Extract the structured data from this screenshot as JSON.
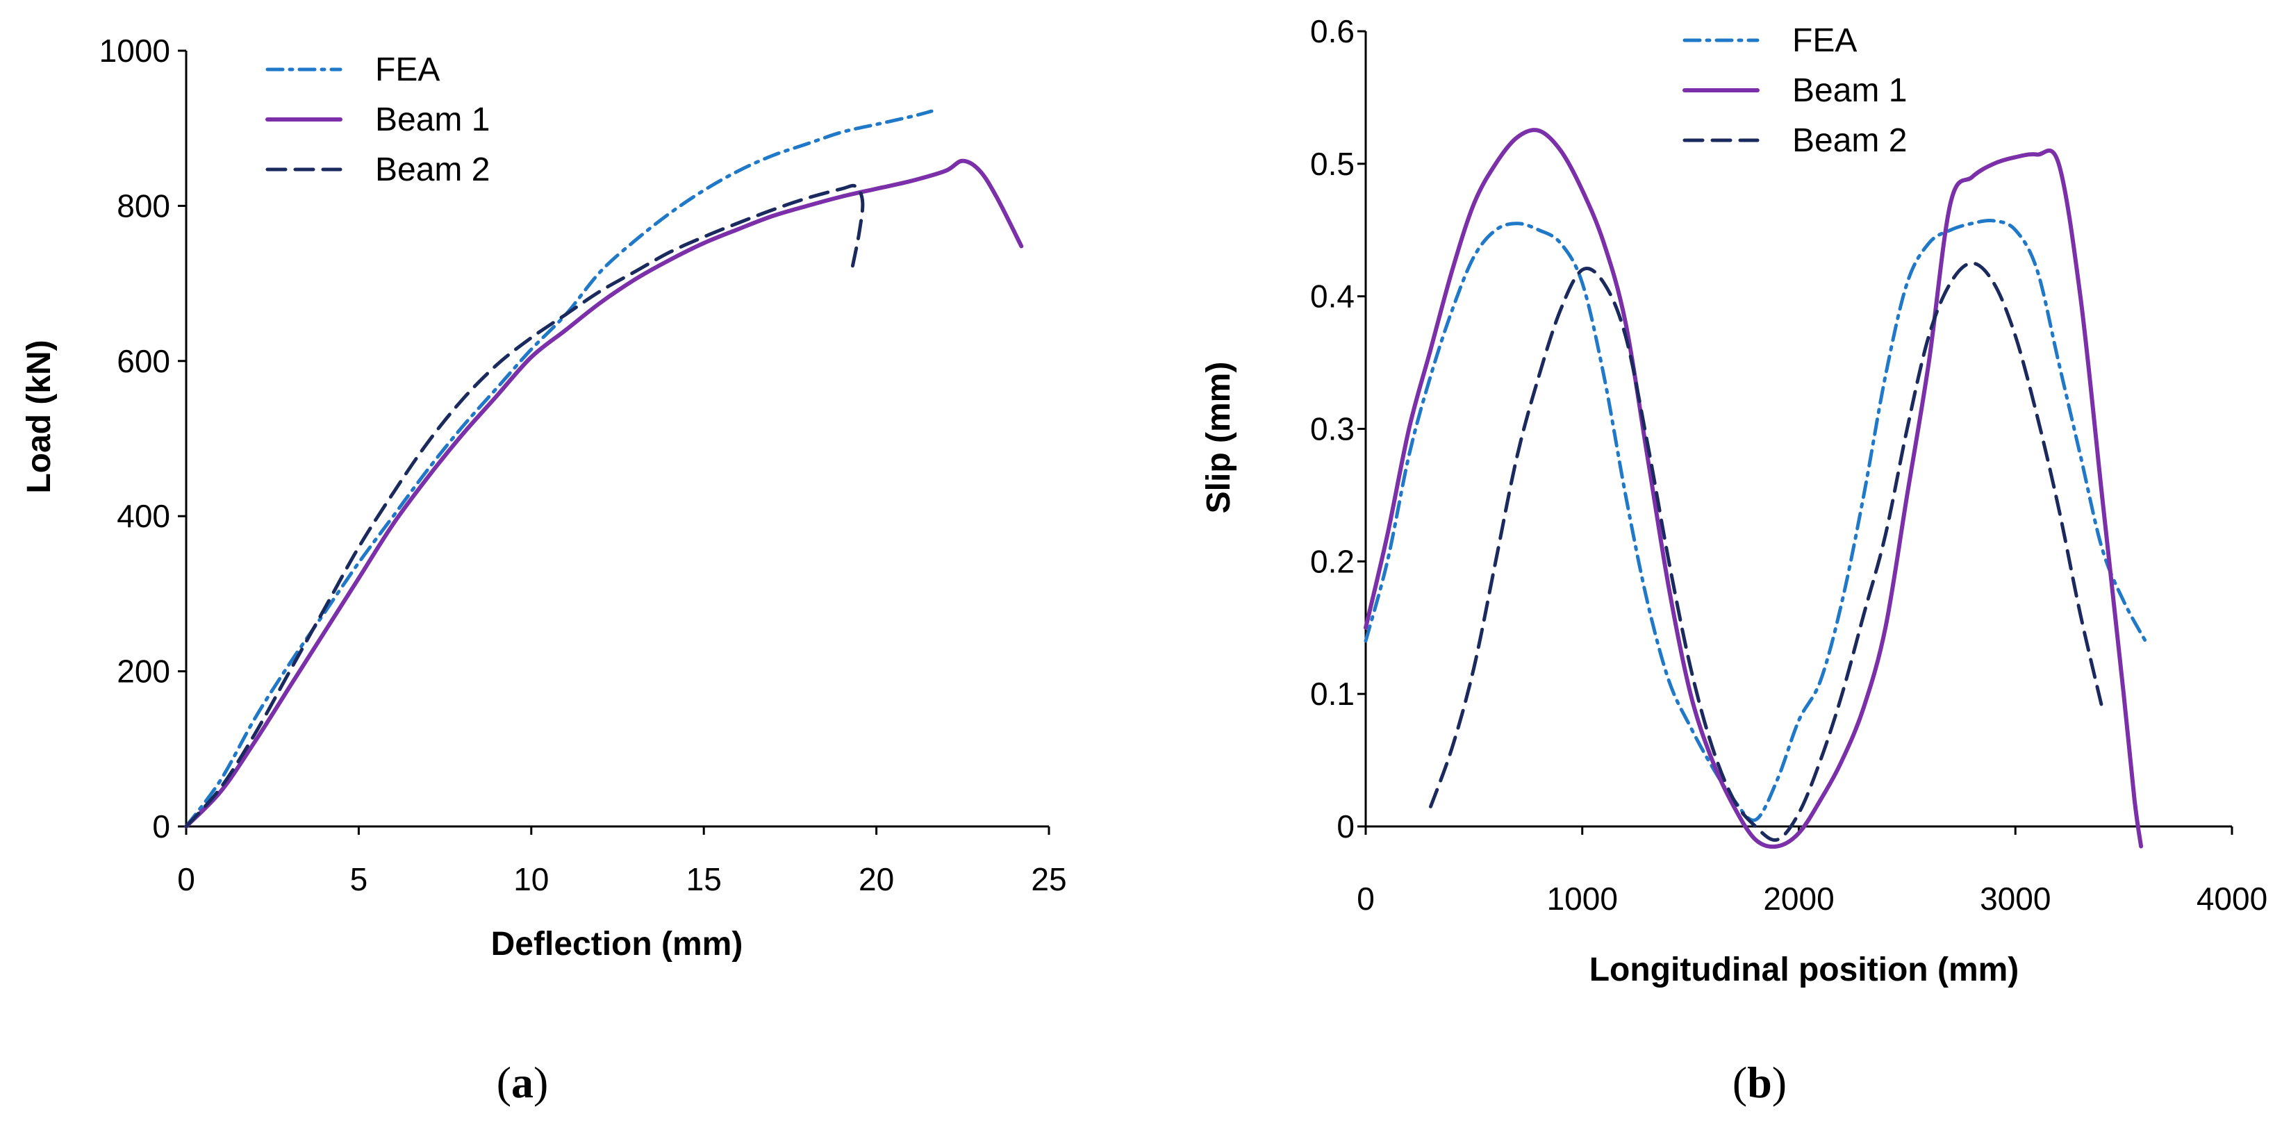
{
  "chart_data": [
    {
      "type": "line",
      "panel": "a",
      "caption": "(a)",
      "xlabel": "Deflection (mm)",
      "ylabel": "Load (kN)",
      "xlim": [
        0,
        25
      ],
      "ylim": [
        0,
        1000
      ],
      "xticks": [
        "0",
        "5",
        "10",
        "15",
        "20",
        "25"
      ],
      "yticks": [
        "0",
        "200",
        "400",
        "600",
        "800",
        "1000"
      ],
      "legend_position": "top-left",
      "series": [
        {
          "name": "FEA",
          "style": "dashdot",
          "color": "#1f78c8",
          "points": [
            [
              0,
              0
            ],
            [
              1,
              60
            ],
            [
              2,
              140
            ],
            [
              3,
              210
            ],
            [
              4,
              275
            ],
            [
              5,
              340
            ],
            [
              6,
              400
            ],
            [
              7,
              460
            ],
            [
              8,
              515
            ],
            [
              9,
              565
            ],
            [
              10,
              615
            ],
            [
              11,
              660
            ],
            [
              12,
              715
            ],
            [
              13,
              755
            ],
            [
              14,
              790
            ],
            [
              15,
              820
            ],
            [
              16,
              845
            ],
            [
              17,
              865
            ],
            [
              18,
              880
            ],
            [
              19,
              895
            ],
            [
              20,
              905
            ],
            [
              21,
              915
            ],
            [
              21.6,
              922
            ]
          ]
        },
        {
          "name": "Beam 1",
          "style": "solid",
          "color": "#7b2fa8",
          "points": [
            [
              0,
              0
            ],
            [
              1,
              45
            ],
            [
              2,
              110
            ],
            [
              3,
              180
            ],
            [
              4,
              250
            ],
            [
              5,
              320
            ],
            [
              6,
              390
            ],
            [
              7,
              450
            ],
            [
              8,
              505
            ],
            [
              9,
              555
            ],
            [
              10,
              605
            ],
            [
              11,
              640
            ],
            [
              12,
              675
            ],
            [
              13,
              705
            ],
            [
              14,
              730
            ],
            [
              15,
              752
            ],
            [
              16,
              770
            ],
            [
              17,
              787
            ],
            [
              18,
              800
            ],
            [
              19,
              812
            ],
            [
              20,
              822
            ],
            [
              21,
              832
            ],
            [
              22,
              845
            ],
            [
              22.5,
              858
            ],
            [
              23,
              845
            ],
            [
              23.5,
              810
            ],
            [
              24.2,
              748
            ]
          ]
        },
        {
          "name": "Beam 2",
          "style": "dashed",
          "color": "#1a2a5e",
          "points": [
            [
              0,
              0
            ],
            [
              1,
              50
            ],
            [
              2,
              120
            ],
            [
              3,
              200
            ],
            [
              4,
              280
            ],
            [
              5,
              360
            ],
            [
              6,
              430
            ],
            [
              7,
              495
            ],
            [
              8,
              550
            ],
            [
              9,
              595
            ],
            [
              10,
              630
            ],
            [
              11,
              660
            ],
            [
              12,
              690
            ],
            [
              13,
              715
            ],
            [
              14,
              740
            ],
            [
              15,
              760
            ],
            [
              16,
              778
            ],
            [
              17,
              795
            ],
            [
              18,
              810
            ],
            [
              19,
              822
            ],
            [
              19.4,
              825
            ],
            [
              19.6,
              805
            ],
            [
              19.5,
              765
            ],
            [
              19.3,
              720
            ]
          ]
        }
      ]
    },
    {
      "type": "line",
      "panel": "b",
      "caption": "(b)",
      "xlabel": "Longitudinal position (mm)",
      "ylabel": "Slip (mm)",
      "xlim": [
        0,
        4000
      ],
      "ylim": [
        0,
        0.6
      ],
      "xticks": [
        "0",
        "1000",
        "2000",
        "3000",
        "4000"
      ],
      "yticks": [
        "0",
        "0.1",
        "0.2",
        "0.3",
        "0.4",
        "0.5",
        "0.6"
      ],
      "legend_position": "top-center",
      "series": [
        {
          "name": "FEA",
          "style": "dashdot",
          "color": "#1f78c8",
          "points": [
            [
              0,
              0.14
            ],
            [
              100,
              0.2
            ],
            [
              200,
              0.28
            ],
            [
              300,
              0.34
            ],
            [
              400,
              0.39
            ],
            [
              500,
              0.43
            ],
            [
              600,
              0.45
            ],
            [
              700,
              0.455
            ],
            [
              800,
              0.45
            ],
            [
              900,
              0.44
            ],
            [
              1000,
              0.41
            ],
            [
              1100,
              0.34
            ],
            [
              1200,
              0.25
            ],
            [
              1300,
              0.17
            ],
            [
              1400,
              0.11
            ],
            [
              1500,
              0.075
            ],
            [
              1600,
              0.045
            ],
            [
              1700,
              0.02
            ],
            [
              1800,
              0.005
            ],
            [
              1900,
              0.035
            ],
            [
              2000,
              0.08
            ],
            [
              2100,
              0.11
            ],
            [
              2200,
              0.17
            ],
            [
              2300,
              0.25
            ],
            [
              2400,
              0.34
            ],
            [
              2500,
              0.41
            ],
            [
              2600,
              0.44
            ],
            [
              2700,
              0.45
            ],
            [
              2800,
              0.455
            ],
            [
              2900,
              0.457
            ],
            [
              3000,
              0.45
            ],
            [
              3100,
              0.42
            ],
            [
              3200,
              0.35
            ],
            [
              3300,
              0.28
            ],
            [
              3400,
              0.21
            ],
            [
              3500,
              0.17
            ],
            [
              3600,
              0.14
            ]
          ]
        },
        {
          "name": "Beam 1",
          "style": "solid",
          "color": "#7b2fa8",
          "points": [
            [
              0,
              0.15
            ],
            [
              100,
              0.22
            ],
            [
              200,
              0.3
            ],
            [
              300,
              0.36
            ],
            [
              400,
              0.42
            ],
            [
              500,
              0.47
            ],
            [
              600,
              0.5
            ],
            [
              700,
              0.52
            ],
            [
              800,
              0.525
            ],
            [
              900,
              0.51
            ],
            [
              1000,
              0.48
            ],
            [
              1100,
              0.44
            ],
            [
              1200,
              0.38
            ],
            [
              1300,
              0.28
            ],
            [
              1400,
              0.18
            ],
            [
              1500,
              0.1
            ],
            [
              1600,
              0.05
            ],
            [
              1700,
              0.015
            ],
            [
              1800,
              -0.01
            ],
            [
              1900,
              -0.015
            ],
            [
              2000,
              -0.005
            ],
            [
              2100,
              0.02
            ],
            [
              2200,
              0.05
            ],
            [
              2300,
              0.09
            ],
            [
              2400,
              0.15
            ],
            [
              2500,
              0.25
            ],
            [
              2600,
              0.35
            ],
            [
              2700,
              0.47
            ],
            [
              2800,
              0.49
            ],
            [
              2900,
              0.5
            ],
            [
              3000,
              0.505
            ],
            [
              3100,
              0.507
            ],
            [
              3200,
              0.5
            ],
            [
              3300,
              0.4
            ],
            [
              3400,
              0.25
            ],
            [
              3500,
              0.1
            ],
            [
              3550,
              0.02
            ],
            [
              3580,
              -0.015
            ]
          ]
        },
        {
          "name": "Beam 2",
          "style": "dashed",
          "color": "#1a2a5e",
          "points": [
            [
              300,
              0.015
            ],
            [
              400,
              0.06
            ],
            [
              500,
              0.12
            ],
            [
              600,
              0.2
            ],
            [
              700,
              0.28
            ],
            [
              800,
              0.34
            ],
            [
              900,
              0.39
            ],
            [
              1000,
              0.42
            ],
            [
              1100,
              0.41
            ],
            [
              1200,
              0.37
            ],
            [
              1300,
              0.29
            ],
            [
              1400,
              0.2
            ],
            [
              1500,
              0.12
            ],
            [
              1600,
              0.06
            ],
            [
              1700,
              0.02
            ],
            [
              1800,
              0
            ],
            [
              1900,
              -0.01
            ],
            [
              2000,
              0.01
            ],
            [
              2100,
              0.05
            ],
            [
              2200,
              0.1
            ],
            [
              2300,
              0.16
            ],
            [
              2400,
              0.22
            ],
            [
              2500,
              0.3
            ],
            [
              2600,
              0.37
            ],
            [
              2700,
              0.41
            ],
            [
              2800,
              0.425
            ],
            [
              2900,
              0.41
            ],
            [
              3000,
              0.37
            ],
            [
              3100,
              0.31
            ],
            [
              3200,
              0.24
            ],
            [
              3300,
              0.16
            ],
            [
              3400,
              0.09
            ]
          ]
        }
      ]
    }
  ]
}
